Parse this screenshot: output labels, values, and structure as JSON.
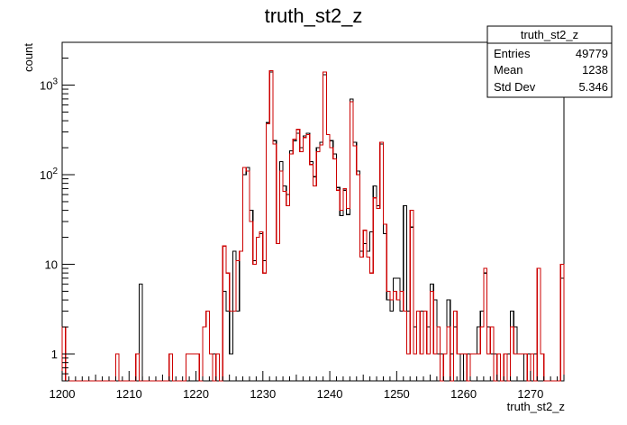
{
  "chart_data": {
    "type": "histogram",
    "title": "truth_st2_z",
    "xlabel": "truth_st2_z",
    "ylabel": "count",
    "xlim": [
      1200,
      1275
    ],
    "ylim": [
      0.5,
      3000
    ],
    "yscale": "log",
    "grid": false,
    "bin_width": 0.5,
    "xticks": [
      "1200",
      "1210",
      "1220",
      "1230",
      "1240",
      "1250",
      "1260",
      "1270"
    ],
    "yticks": [
      {
        "value": 1,
        "base": "1",
        "exp": ""
      },
      {
        "value": 10,
        "base": "10",
        "exp": ""
      },
      {
        "value": 100,
        "base": "10",
        "exp": "2"
      },
      {
        "value": 1000,
        "base": "10",
        "exp": "3"
      }
    ],
    "stats_box": {
      "title": "truth_st2_z",
      "rows": [
        {
          "label": "Entries",
          "value": "49779"
        },
        {
          "label": "Mean",
          "value": "1238"
        },
        {
          "label": "Std Dev",
          "value": "5.346"
        }
      ]
    },
    "series": [
      {
        "color": "#000000",
        "bins": [
          [
            1211.5,
            6
          ],
          [
            1218.5,
            1
          ],
          [
            1219,
            1
          ],
          [
            1219.5,
            1
          ],
          [
            1220,
            1
          ],
          [
            1222.5,
            1
          ],
          [
            1223,
            1
          ],
          [
            1224,
            5
          ],
          [
            1224.5,
            3
          ],
          [
            1225,
            1
          ],
          [
            1225.5,
            14
          ],
          [
            1226,
            3
          ],
          [
            1226.5,
            14
          ],
          [
            1227,
            100
          ],
          [
            1227.5,
            120
          ],
          [
            1228,
            40
          ],
          [
            1228.5,
            11
          ],
          [
            1229,
            20
          ],
          [
            1229.5,
            22
          ],
          [
            1230,
            11
          ],
          [
            1230.5,
            380
          ],
          [
            1231,
            1400
          ],
          [
            1231.5,
            240
          ],
          [
            1232,
            17
          ],
          [
            1232.5,
            140
          ],
          [
            1233,
            75
          ],
          [
            1233.5,
            60
          ],
          [
            1234,
            185
          ],
          [
            1234.5,
            240
          ],
          [
            1235,
            290
          ],
          [
            1235.5,
            200
          ],
          [
            1236,
            270
          ],
          [
            1236.5,
            290
          ],
          [
            1237,
            140
          ],
          [
            1237.5,
            95
          ],
          [
            1238,
            200
          ],
          [
            1238.5,
            230
          ],
          [
            1239,
            1300
          ],
          [
            1239.5,
            280
          ],
          [
            1240,
            240
          ],
          [
            1240.5,
            170
          ],
          [
            1241,
            72
          ],
          [
            1241.5,
            35
          ],
          [
            1242,
            67
          ],
          [
            1242.5,
            36
          ],
          [
            1243,
            700
          ],
          [
            1243.5,
            230
          ],
          [
            1244,
            110
          ],
          [
            1244.5,
            14
          ],
          [
            1245,
            17
          ],
          [
            1245.5,
            14
          ],
          [
            1246,
            23
          ],
          [
            1246.5,
            75
          ],
          [
            1247,
            45
          ],
          [
            1247.5,
            220
          ],
          [
            1248,
            22
          ],
          [
            1248.5,
            4
          ],
          [
            1249,
            3
          ],
          [
            1249.5,
            7
          ],
          [
            1250,
            7
          ],
          [
            1250.5,
            3
          ],
          [
            1251,
            45
          ],
          [
            1251.5,
            3
          ],
          [
            1252,
            26
          ],
          [
            1252.5,
            2
          ],
          [
            1253,
            3
          ],
          [
            1253.5,
            3
          ],
          [
            1254,
            3
          ],
          [
            1254.5,
            2
          ],
          [
            1255,
            6
          ],
          [
            1255.5,
            4
          ],
          [
            1256,
            1
          ],
          [
            1256.5,
            1
          ],
          [
            1257,
            1
          ],
          [
            1257.5,
            4
          ],
          [
            1258,
            1
          ],
          [
            1258.5,
            2
          ],
          [
            1259,
            1
          ],
          [
            1260,
            1
          ],
          [
            1260.5,
            1
          ],
          [
            1261,
            1
          ],
          [
            1261.5,
            1
          ],
          [
            1262,
            2
          ],
          [
            1262.5,
            3
          ],
          [
            1263,
            8
          ],
          [
            1263.5,
            2
          ],
          [
            1264,
            1
          ],
          [
            1264.5,
            1
          ],
          [
            1265,
            1
          ],
          [
            1266,
            1
          ],
          [
            1266.5,
            1
          ],
          [
            1267,
            3
          ],
          [
            1267.5,
            2
          ],
          [
            1268,
            1
          ],
          [
            1268.5,
            1
          ],
          [
            1269.5,
            1
          ],
          [
            1270,
            1
          ],
          [
            1270.5,
            1
          ],
          [
            1274.5,
            7
          ]
        ]
      },
      {
        "color": "#cc0000",
        "bins": [
          [
            1200,
            2
          ],
          [
            1208,
            1
          ],
          [
            1211,
            1
          ],
          [
            1216,
            1
          ],
          [
            1218.5,
            1
          ],
          [
            1219,
            1
          ],
          [
            1219.5,
            1
          ],
          [
            1220,
            1
          ],
          [
            1221,
            2
          ],
          [
            1221.5,
            3
          ],
          [
            1222,
            1
          ],
          [
            1223,
            1
          ],
          [
            1224,
            16
          ],
          [
            1224.5,
            8
          ],
          [
            1225,
            3
          ],
          [
            1225.5,
            3
          ],
          [
            1226,
            11
          ],
          [
            1226.5,
            14
          ],
          [
            1227,
            120
          ],
          [
            1227.5,
            110
          ],
          [
            1228,
            30
          ],
          [
            1228.5,
            10
          ],
          [
            1229,
            20
          ],
          [
            1229.5,
            23
          ],
          [
            1230,
            8
          ],
          [
            1230.5,
            370
          ],
          [
            1231,
            1450
          ],
          [
            1231.5,
            220
          ],
          [
            1232,
            17
          ],
          [
            1232.5,
            110
          ],
          [
            1233,
            65
          ],
          [
            1233.5,
            45
          ],
          [
            1234,
            170
          ],
          [
            1234.5,
            250
          ],
          [
            1235,
            320
          ],
          [
            1235.5,
            180
          ],
          [
            1236,
            260
          ],
          [
            1236.5,
            280
          ],
          [
            1237,
            130
          ],
          [
            1237.5,
            75
          ],
          [
            1238,
            180
          ],
          [
            1238.5,
            215
          ],
          [
            1239,
            1400
          ],
          [
            1239.5,
            280
          ],
          [
            1240,
            200
          ],
          [
            1240.5,
            150
          ],
          [
            1241,
            67
          ],
          [
            1241.5,
            40
          ],
          [
            1242,
            70
          ],
          [
            1242.5,
            42
          ],
          [
            1243,
            650
          ],
          [
            1243.5,
            210
          ],
          [
            1244,
            100
          ],
          [
            1244.5,
            12
          ],
          [
            1245,
            24
          ],
          [
            1245.5,
            12
          ],
          [
            1246,
            8
          ],
          [
            1246.5,
            55
          ],
          [
            1247,
            42
          ],
          [
            1247.5,
            230
          ],
          [
            1248,
            28
          ],
          [
            1248.5,
            5
          ],
          [
            1249,
            4
          ],
          [
            1249.5,
            5
          ],
          [
            1250,
            4
          ],
          [
            1250.5,
            5
          ],
          [
            1251,
            3
          ],
          [
            1251.5,
            1
          ],
          [
            1252,
            40
          ],
          [
            1252.5,
            1
          ],
          [
            1253,
            3
          ],
          [
            1253.5,
            1
          ],
          [
            1254,
            3
          ],
          [
            1254.5,
            1
          ],
          [
            1255,
            5
          ],
          [
            1255.5,
            1
          ],
          [
            1256,
            2
          ],
          [
            1257,
            1
          ],
          [
            1257.5,
            2
          ],
          [
            1258.5,
            3
          ],
          [
            1259,
            1
          ],
          [
            1259.5,
            1
          ],
          [
            1260,
            1
          ],
          [
            1261,
            1
          ],
          [
            1261.5,
            1
          ],
          [
            1262,
            1
          ],
          [
            1262.5,
            2
          ],
          [
            1263,
            9
          ],
          [
            1263.5,
            1
          ],
          [
            1264,
            2
          ],
          [
            1265,
            1
          ],
          [
            1266,
            1
          ],
          [
            1267,
            2
          ],
          [
            1267.5,
            1
          ],
          [
            1268,
            1
          ],
          [
            1268.5,
            1
          ],
          [
            1269,
            1
          ],
          [
            1270,
            1
          ],
          [
            1271,
            9
          ],
          [
            1271.5,
            1
          ],
          [
            1274.5,
            10
          ]
        ]
      }
    ]
  }
}
